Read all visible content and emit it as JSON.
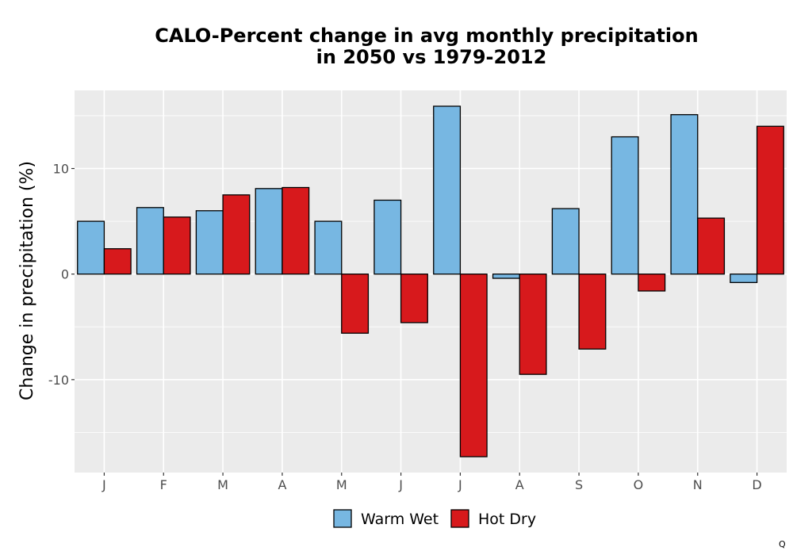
{
  "chart_data": {
    "type": "bar",
    "title_line1": "CALO-Percent change in avg monthly precipitation",
    "title_line2": "in 2050 vs 1979-2012",
    "xlabel": "",
    "ylabel": "Change in precipitation (%)",
    "categories": [
      "J",
      "F",
      "M",
      "A",
      "M",
      "J",
      "J",
      "A",
      "S",
      "O",
      "N",
      "D"
    ],
    "series": [
      {
        "name": "Warm Wet",
        "color": "#77b7e2",
        "values": [
          5.0,
          6.3,
          6.0,
          8.1,
          5.0,
          7.0,
          15.9,
          -0.4,
          6.2,
          13.0,
          15.1,
          -0.8
        ]
      },
      {
        "name": "Hot Dry",
        "color": "#d7191c",
        "values": [
          2.4,
          5.4,
          7.5,
          8.2,
          -5.6,
          -4.6,
          -17.3,
          -9.5,
          -7.1,
          -1.6,
          5.3,
          14.0
        ]
      }
    ],
    "ylim": [
      -18.8,
      17.4
    ],
    "yticks": [
      -10,
      0,
      10
    ],
    "ytick_labels": [
      "-10",
      "0",
      "10"
    ],
    "panel_background": "#ebebeb",
    "grid": true,
    "legend_position": "bottom",
    "corner_mark": "Q"
  }
}
